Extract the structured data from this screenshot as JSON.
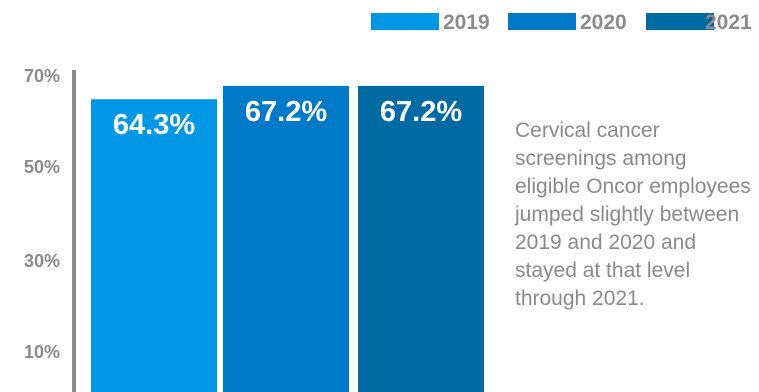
{
  "chart_data": {
    "type": "bar",
    "categories": [
      "2019",
      "2020",
      "2021"
    ],
    "values": [
      64.3,
      67.2,
      67.2
    ],
    "value_labels": [
      "64.3%",
      "67.2%",
      "67.2%"
    ],
    "colors": [
      "#0097e6",
      "#0079c8",
      "#006aa3"
    ],
    "yticks": [
      "70%",
      "50%",
      "30%",
      "10%"
    ],
    "ylim": [
      0,
      70
    ],
    "grid": false,
    "legend": {
      "position": "top-right",
      "entries": [
        "2019",
        "2020",
        "2021"
      ]
    },
    "annotation": "Cervical cancer screenings among eligible Oncor employees jumped slightly between 2019 and 2020 and stayed at that level through 2021."
  }
}
